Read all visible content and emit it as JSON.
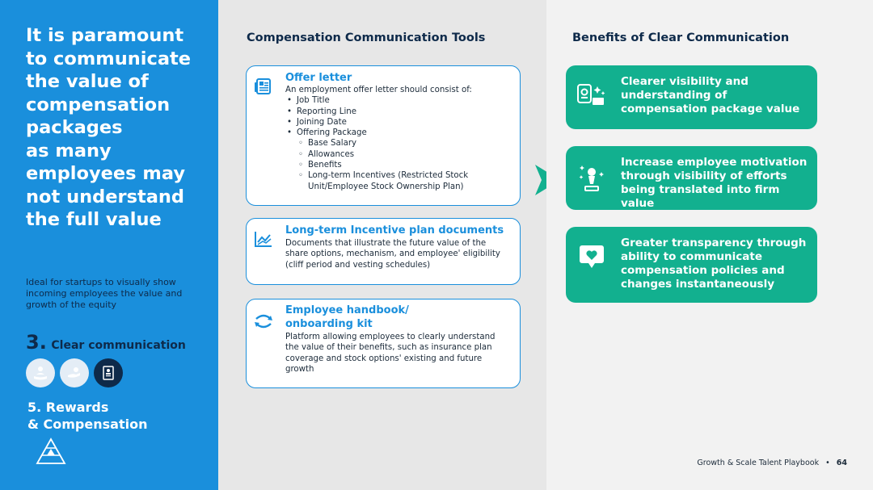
{
  "left": {
    "headline_lines": [
      "It is paramount",
      "to communicate",
      "the value of",
      "compensation",
      "packages",
      "as many",
      "employees may",
      "not understand",
      "the full value"
    ],
    "ideal_text": "Ideal for startups to visually show incoming employees the value and growth of the equity",
    "section_number": "3.",
    "section_title": "Clear communication",
    "rewards_line1": "5. Rewards",
    "rewards_line2": "& Compensation"
  },
  "tools": {
    "title": "Compensation Communication Tools",
    "offer": {
      "title": "Offer letter",
      "intro": "An employment offer letter should consist of:",
      "items": [
        "Job Title",
        "Reporting Line",
        "Joining Date",
        "Offering Package"
      ],
      "subitems": [
        "Base Salary",
        "Allowances",
        "Benefits",
        "Long-term Incentives (Restricted Stock Unit/Employee Stock Ownership Plan)"
      ],
      "bullet": "•",
      "subbullet": "◦"
    },
    "ltip": {
      "title": "Long-term Incentive plan documents",
      "desc": "Documents that illustrate the future value of the share options, mechanism, and employee' eligibility (cliff period and vesting schedules)"
    },
    "handbook": {
      "title_line1": "Employee handbook/",
      "title_line2": "onboarding kit",
      "desc": "Platform allowing employees to clearly understand the value of their benefits, such as insurance plan coverage and stock options' existing and future growth"
    }
  },
  "benefits": {
    "title": "Benefits of Clear Communication",
    "items": [
      {
        "text": "Clearer visibility and understanding of compensation package value",
        "icon": "visibility-icon"
      },
      {
        "text": "Increase employee motivation through visibility of efforts being translated into firm value",
        "icon": "trophy-icon"
      },
      {
        "text": "Greater transparency through ability to communicate compensation policies and changes instantaneously",
        "icon": "chat-heart-icon"
      }
    ]
  },
  "footer": {
    "book": "Growth & Scale Talent Playbook",
    "sep": "•",
    "page": "64"
  },
  "colors": {
    "blue": "#1a8fdc",
    "navy": "#0e2a4a",
    "green": "#12b08f"
  }
}
